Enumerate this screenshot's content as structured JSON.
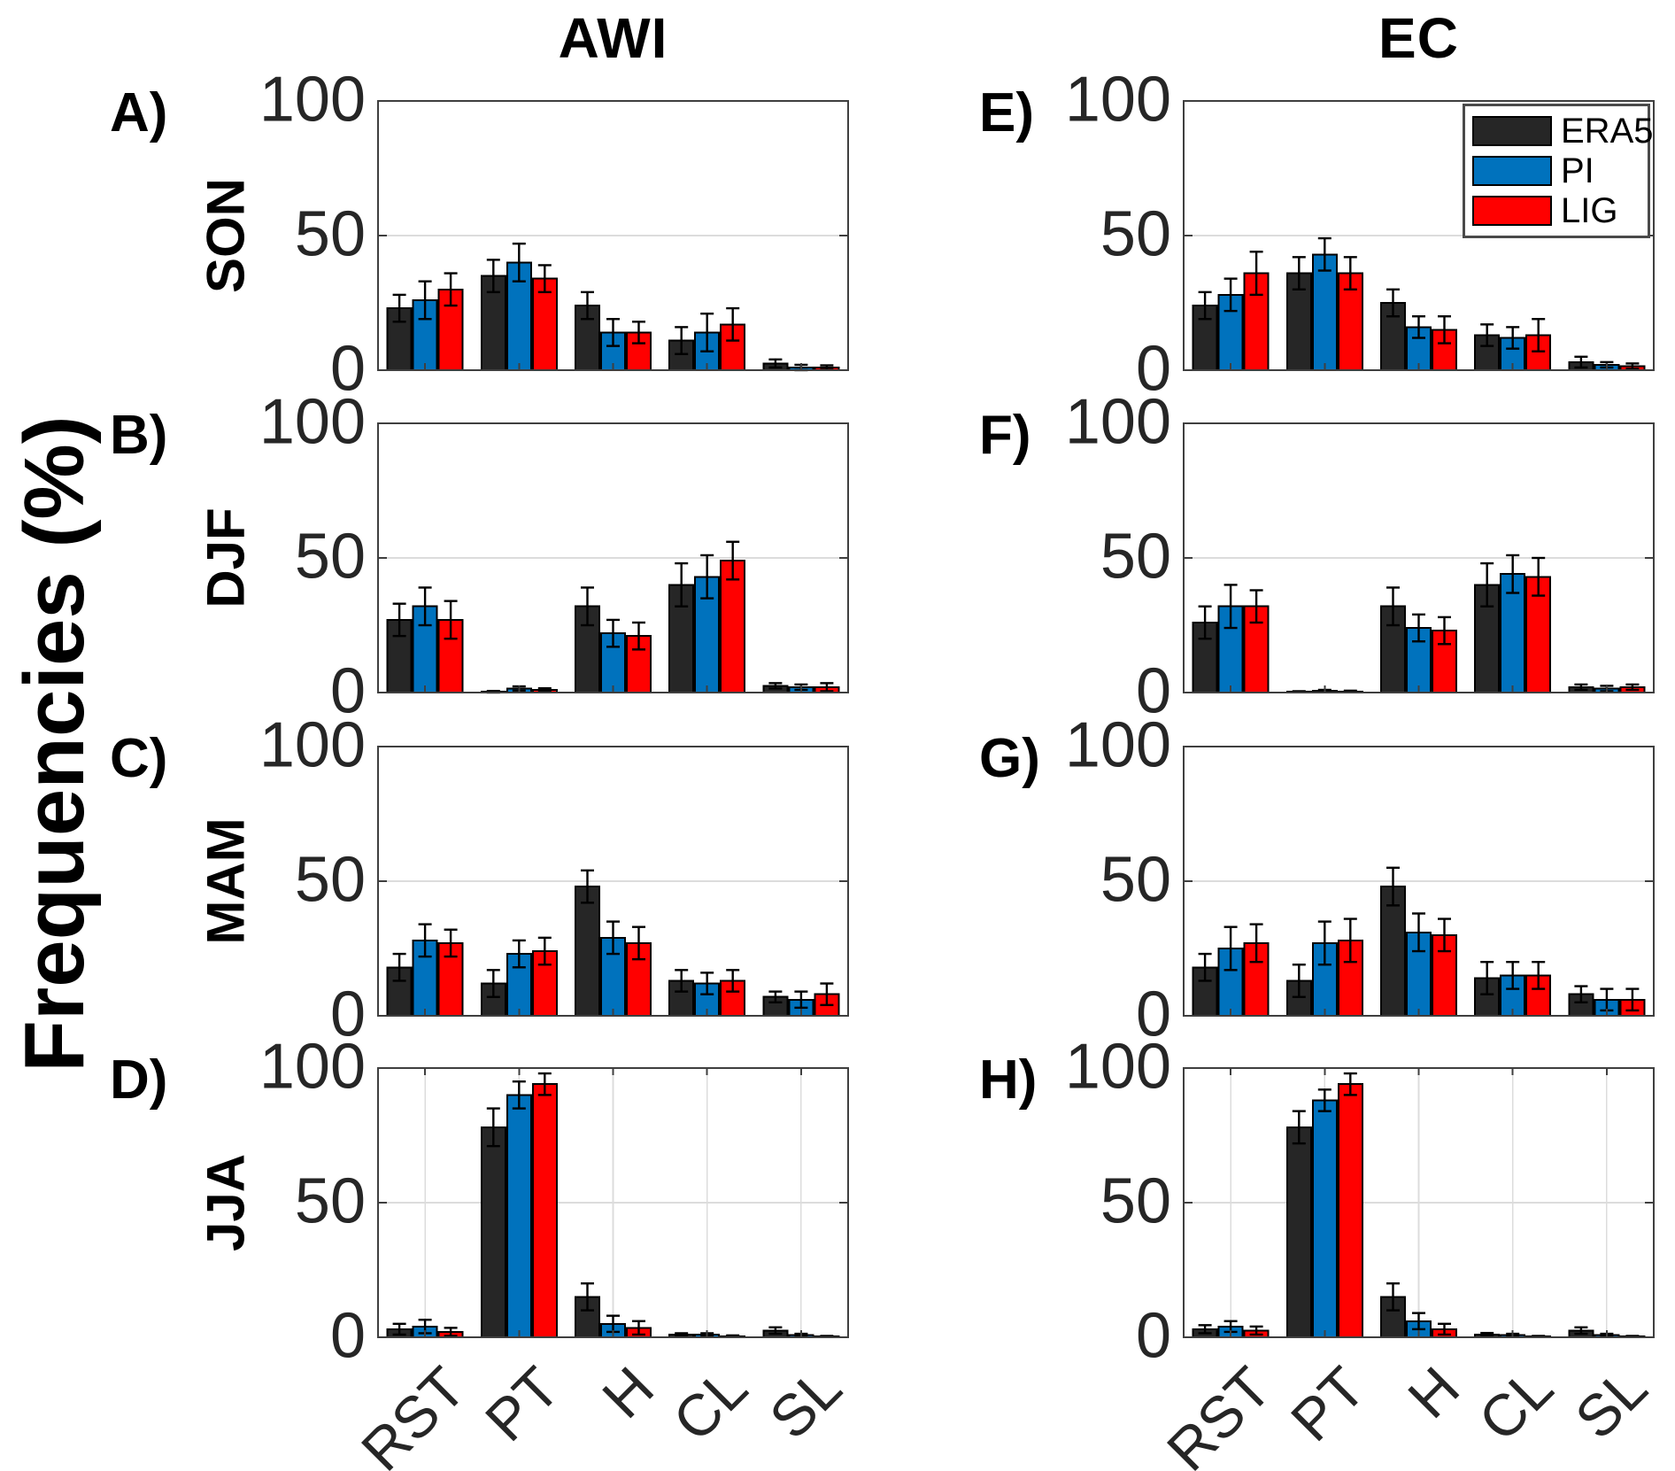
{
  "figure": {
    "column_titles": [
      "AWI",
      "EC"
    ]
  },
  "chart_data": {
    "type": "bar",
    "title": "",
    "ylabel": "Frequencies (%)",
    "categories": [
      "RST",
      "PT",
      "H",
      "CL",
      "SL"
    ],
    "series_names": [
      "ERA5",
      "PI",
      "LIG"
    ],
    "series_colors": [
      "#262626",
      "#0072BD",
      "#FF0000"
    ],
    "ylim": [
      0,
      100
    ],
    "yticks": [
      0,
      50,
      100
    ],
    "grid": "y-gridline at 50 on all panels; vertical category gridlines on JJA panels only",
    "legend_position": "top-right of panel E",
    "error_bars": true,
    "columns": [
      "AWI",
      "EC"
    ],
    "rows": [
      "SON",
      "DJF",
      "MAM",
      "JJA"
    ],
    "panels": [
      {
        "letter": "A)",
        "column": "AWI",
        "season": "SON",
        "show_season": true,
        "x_grid": false,
        "series": [
          {
            "name": "ERA5",
            "values": [
              23,
              35,
              24,
              11,
              2.5
            ],
            "errors": [
              5,
              6,
              5,
              5,
              1.5
            ]
          },
          {
            "name": "PI",
            "values": [
              26,
              40,
              14,
              14,
              1
            ],
            "errors": [
              7,
              7,
              5,
              7,
              1
            ]
          },
          {
            "name": "LIG",
            "values": [
              30,
              34,
              14,
              17,
              1
            ],
            "errors": [
              6,
              5,
              4,
              6,
              0.8
            ]
          }
        ]
      },
      {
        "letter": "B)",
        "column": "AWI",
        "season": "DJF",
        "show_season": true,
        "x_grid": false,
        "series": [
          {
            "name": "ERA5",
            "values": [
              27,
              0.3,
              32,
              40,
              2.5
            ],
            "errors": [
              6,
              0.3,
              7,
              8,
              1
            ]
          },
          {
            "name": "PI",
            "values": [
              32,
              1.5,
              22,
              43,
              2
            ],
            "errors": [
              7,
              0.8,
              5,
              8,
              1
            ]
          },
          {
            "name": "LIG",
            "values": [
              27,
              1,
              21,
              49,
              2
            ],
            "errors": [
              7,
              0.6,
              5,
              7,
              1.5
            ]
          }
        ]
      },
      {
        "letter": "C)",
        "column": "AWI",
        "season": "MAM",
        "show_season": true,
        "x_grid": false,
        "series": [
          {
            "name": "ERA5",
            "values": [
              18,
              12,
              48,
              13,
              7
            ],
            "errors": [
              5,
              5,
              6,
              4,
              2
            ]
          },
          {
            "name": "PI",
            "values": [
              28,
              23,
              29,
              12,
              6
            ],
            "errors": [
              6,
              5,
              6,
              4,
              3
            ]
          },
          {
            "name": "LIG",
            "values": [
              27,
              24,
              27,
              13,
              8
            ],
            "errors": [
              5,
              5,
              6,
              4,
              4
            ]
          }
        ]
      },
      {
        "letter": "D)",
        "column": "AWI",
        "season": "JJA",
        "show_season": true,
        "x_grid": true,
        "series": [
          {
            "name": "ERA5",
            "values": [
              3,
              78,
              15,
              1,
              2.5
            ],
            "errors": [
              2,
              7,
              5,
              0.5,
              1.2
            ]
          },
          {
            "name": "PI",
            "values": [
              4,
              90,
              5,
              1,
              0.8
            ],
            "errors": [
              2.5,
              5,
              3,
              0.5,
              0.5
            ]
          },
          {
            "name": "LIG",
            "values": [
              2,
              94,
              3.5,
              0.4,
              0.3
            ],
            "errors": [
              1.5,
              4,
              2.5,
              0.3,
              0.2
            ]
          }
        ]
      },
      {
        "letter": "E)",
        "column": "EC",
        "season": "SON",
        "show_season": false,
        "x_grid": false,
        "series": [
          {
            "name": "ERA5",
            "values": [
              24,
              36,
              25,
              13,
              3
            ],
            "errors": [
              5,
              6,
              5,
              4,
              2
            ]
          },
          {
            "name": "PI",
            "values": [
              28,
              43,
              16,
              12,
              2
            ],
            "errors": [
              6,
              6,
              4,
              4,
              1
            ]
          },
          {
            "name": "LIG",
            "values": [
              36,
              36,
              15,
              13,
              1.5
            ],
            "errors": [
              8,
              6,
              5,
              6,
              1
            ]
          }
        ]
      },
      {
        "letter": "F)",
        "column": "EC",
        "season": "DJF",
        "show_season": false,
        "x_grid": false,
        "series": [
          {
            "name": "ERA5",
            "values": [
              26,
              0.3,
              32,
              40,
              2
            ],
            "errors": [
              6,
              0.2,
              7,
              8,
              1
            ]
          },
          {
            "name": "PI",
            "values": [
              32,
              0.6,
              24,
              44,
              1.5
            ],
            "errors": [
              8,
              0.4,
              5,
              7,
              1
            ]
          },
          {
            "name": "LIG",
            "values": [
              32,
              0.4,
              23,
              43,
              2
            ],
            "errors": [
              6,
              0.3,
              5,
              7,
              1
            ]
          }
        ]
      },
      {
        "letter": "G)",
        "column": "EC",
        "season": "MAM",
        "show_season": false,
        "x_grid": false,
        "series": [
          {
            "name": "ERA5",
            "values": [
              18,
              13,
              48,
              14,
              8
            ],
            "errors": [
              5,
              6,
              7,
              6,
              3
            ]
          },
          {
            "name": "PI",
            "values": [
              25,
              27,
              31,
              15,
              6
            ],
            "errors": [
              8,
              8,
              7,
              5,
              4
            ]
          },
          {
            "name": "LIG",
            "values": [
              27,
              28,
              30,
              15,
              6
            ],
            "errors": [
              7,
              8,
              6,
              5,
              4
            ]
          }
        ]
      },
      {
        "letter": "H)",
        "column": "EC",
        "season": "JJA",
        "show_season": false,
        "x_grid": true,
        "series": [
          {
            "name": "ERA5",
            "values": [
              3,
              78,
              15,
              1,
              2.5
            ],
            "errors": [
              1.5,
              6,
              5,
              0.6,
              1.2
            ]
          },
          {
            "name": "PI",
            "values": [
              4,
              88,
              6,
              0.8,
              0.8
            ],
            "errors": [
              2,
              4,
              3,
              0.5,
              0.5
            ]
          },
          {
            "name": "LIG",
            "values": [
              2.5,
              94,
              3,
              0.3,
              0.3
            ],
            "errors": [
              1.5,
              4,
              2,
              0.2,
              0.2
            ]
          }
        ]
      }
    ]
  }
}
